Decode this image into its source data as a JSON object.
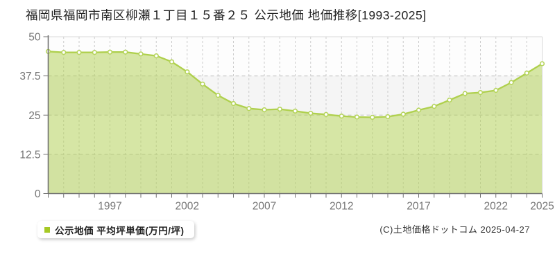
{
  "page": {
    "title": "福岡県福岡市南区柳瀬１丁目１５番２５ 公示地価 地価推移[1993-2025]",
    "copyright": "(C)土地価格ドットコム 2025-04-27"
  },
  "legend": {
    "label": "公示地価 平均坪単価(万円/坪)",
    "marker_color": "#a6c925"
  },
  "chart_data": {
    "type": "area",
    "title": "福岡県福岡市南区柳瀬１丁目１５番２５ 公示地価 地価推移[1993-2025]",
    "series_name": "公示地価 平均坪単価(万円/坪)",
    "xlabel": "",
    "ylabel": "平均坪単価(万円/坪)",
    "x": [
      1993,
      1994,
      1995,
      1996,
      1997,
      1998,
      1999,
      2000,
      2001,
      2002,
      2003,
      2004,
      2005,
      2006,
      2007,
      2008,
      2009,
      2010,
      2011,
      2012,
      2013,
      2014,
      2015,
      2016,
      2017,
      2018,
      2019,
      2020,
      2021,
      2022,
      2023,
      2024,
      2025
    ],
    "values": [
      45.3,
      45.0,
      45.0,
      45.0,
      45.1,
      45.1,
      44.5,
      43.9,
      42.0,
      38.8,
      34.9,
      31.3,
      28.7,
      27.1,
      26.7,
      26.9,
      26.3,
      25.6,
      25.2,
      24.7,
      24.4,
      24.3,
      24.5,
      25.3,
      26.6,
      27.8,
      29.8,
      31.9,
      32.2,
      32.9,
      35.4,
      38.4,
      41.4
    ],
    "ylim": [
      0,
      50
    ],
    "yticks": [
      0,
      12.5,
      25,
      37.5,
      50
    ],
    "ytick_labels": [
      "0",
      "12.5",
      "25",
      "37.5",
      "50"
    ],
    "xtick_years": [
      1997,
      2002,
      2007,
      2012,
      2017,
      2022,
      2025
    ],
    "xtick_labels": [
      "1997",
      "2002",
      "2007",
      "2012",
      "2017",
      "2022",
      "2025"
    ],
    "grid": true,
    "legend_position": "bottom-left",
    "colors": {
      "line": "#afd04d",
      "fill": "rgba(175,208,77,0.5)",
      "marker_fill": "#ffffff",
      "marker_stroke": "#b5d45a",
      "grid": "#cccccc",
      "band": "#f5f5f5",
      "plot_bg": "#fdfdfd",
      "border": "#d8d8d8",
      "axis": "#707070",
      "tick_label": "#757575"
    }
  }
}
